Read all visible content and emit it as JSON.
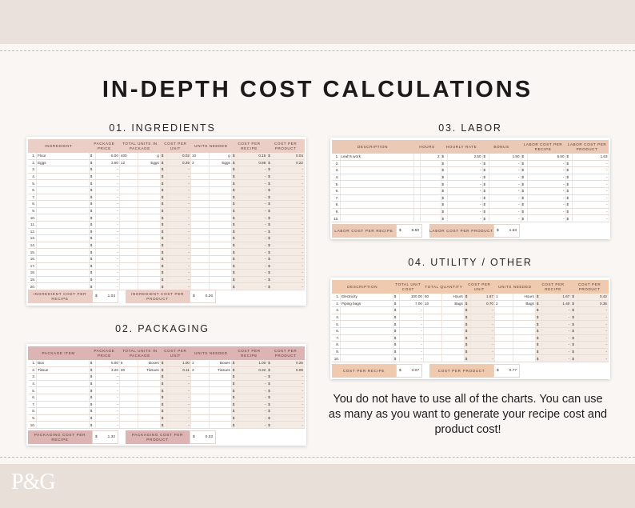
{
  "title": "IN-DEPTH COST CALCULATIONS",
  "logo": "P&G",
  "colors": {
    "ingredients_header": "#ebcfc6",
    "labor_header": "#ebc9b7",
    "utility_header": "#efcaae",
    "packaging_header": "#dbb4b3"
  },
  "ingredients": {
    "section_title": "01. INGREDIENTS",
    "columns": [
      "INGREDIENT",
      "PACKAGE PRICE",
      "TOTAL UNITS IN PACKAGE",
      "COST PER UNIT",
      "UNITS NEEDED",
      "COST PER RECIPE",
      "COST PER PRODUCT"
    ],
    "rows": [
      {
        "n": "1.",
        "name": "Flour",
        "price": "6.00",
        "units": "400",
        "unit": "g",
        "cpu": "0.02",
        "needed": "10",
        "nunit": "g",
        "cpr": "0.15",
        "cpp": "0.04"
      },
      {
        "n": "2.",
        "name": "Eggs",
        "price": "3.50",
        "units": "12",
        "unit": "Eggs",
        "cpu": "0.29",
        "needed": "3",
        "nunit": "Eggs",
        "cpr": "0.88",
        "cpp": "0.22"
      },
      {
        "n": "3."
      },
      {
        "n": "4."
      },
      {
        "n": "5."
      },
      {
        "n": "6."
      },
      {
        "n": "7."
      },
      {
        "n": "8."
      },
      {
        "n": "9."
      },
      {
        "n": "10."
      },
      {
        "n": "11."
      },
      {
        "n": "12."
      },
      {
        "n": "13."
      },
      {
        "n": "14."
      },
      {
        "n": "15."
      },
      {
        "n": "16."
      },
      {
        "n": "17."
      },
      {
        "n": "18."
      },
      {
        "n": "19."
      },
      {
        "n": "20."
      }
    ],
    "summary": [
      {
        "label": "INGREDIENT COST PER RECIPE",
        "currency": "$",
        "value": "1.03"
      },
      {
        "label": "INGREDIENT COST PER PRODUCT",
        "currency": "$",
        "value": "0.26"
      }
    ]
  },
  "labor": {
    "section_title": "03. LABOR",
    "columns": [
      "DESCRIPTION",
      "HOURS",
      "HOURLY RATE",
      "BONUS",
      "LABOR COST PER RECIPE",
      "LABOR COST PER PRODUCT"
    ],
    "rows": [
      {
        "n": "1.",
        "name": "Leah's work",
        "hours": "2",
        "rate": "2.50",
        "bonus": "1.50",
        "cpr": "6.50",
        "cpp": "1.63"
      },
      {
        "n": "2."
      },
      {
        "n": "3."
      },
      {
        "n": "4."
      },
      {
        "n": "5."
      },
      {
        "n": "6."
      },
      {
        "n": "7."
      },
      {
        "n": "8."
      },
      {
        "n": "9."
      },
      {
        "n": "10."
      }
    ],
    "summary": [
      {
        "label": "LABOR COST PER RECIPE",
        "currency": "$",
        "value": "6.50"
      },
      {
        "label": "LABOR COST PER PRODUCT",
        "currency": "$",
        "value": "1.63"
      }
    ]
  },
  "utility": {
    "section_title": "04. UTILITY / OTHER",
    "columns": [
      "DESCRIPTION",
      "TOTAL UNIT COST",
      "TOTAL QUANTITY",
      "COST PER UNIT",
      "UNITS NEEDED",
      "COST PER RECIPE",
      "COST PER PRODUCT"
    ],
    "rows": [
      {
        "n": "1.",
        "name": "Electricity",
        "price": "100.00",
        "units": "60",
        "unit": "Hours",
        "cpu": "1.67",
        "needed": "1",
        "nunit": "Hours",
        "cpr": "1.67",
        "cpp": "0.42"
      },
      {
        "n": "2.",
        "name": "Piping bags",
        "price": "7.00",
        "units": "10",
        "unit": "Bags",
        "cpu": "0.70",
        "needed": "2",
        "nunit": "Bags",
        "cpr": "1.40",
        "cpp": "0.35"
      },
      {
        "n": "3."
      },
      {
        "n": "4."
      },
      {
        "n": "5."
      },
      {
        "n": "6."
      },
      {
        "n": "7."
      },
      {
        "n": "8."
      },
      {
        "n": "9."
      },
      {
        "n": "10."
      }
    ],
    "summary": [
      {
        "label": "COST PER RECIPE",
        "currency": "$",
        "value": "3.07"
      },
      {
        "label": "COST PER PRODUCT",
        "currency": "$",
        "value": "0.77"
      }
    ]
  },
  "packaging": {
    "section_title": "02. PACKAGING",
    "columns": [
      "PACKAGE ITEM",
      "PACKAGE PRICE",
      "TOTAL UNITS IN PACKAGE",
      "COST PER UNIT",
      "UNITS NEEDED",
      "COST PER RECIPE",
      "COST PER PRODUCT"
    ],
    "rows": [
      {
        "n": "1.",
        "name": "Box",
        "price": "5.00",
        "units": "5",
        "unit": "Boxes",
        "cpu": "1.00",
        "needed": "1",
        "nunit": "Boxes",
        "cpr": "1.00",
        "cpp": "0.25"
      },
      {
        "n": "2.",
        "name": "Tissue",
        "price": "3.20",
        "units": "30",
        "unit": "Tissues",
        "cpu": "0.11",
        "needed": "3",
        "nunit": "Tissues",
        "cpr": "0.32",
        "cpp": "0.08"
      },
      {
        "n": "3."
      },
      {
        "n": "4."
      },
      {
        "n": "5."
      },
      {
        "n": "6."
      },
      {
        "n": "7."
      },
      {
        "n": "8."
      },
      {
        "n": "9."
      },
      {
        "n": "10."
      }
    ],
    "summary": [
      {
        "label": "PACKAGING COST PER RECIPE",
        "currency": "$",
        "value": "1.32"
      },
      {
        "label": "PACKAGING COST PER PRODUCT",
        "currency": "$",
        "value": "0.33"
      }
    ]
  },
  "empty_value": "-",
  "currency_symbol": "$",
  "note": "You do not have to use all of the charts. You can use as many as you want to generate your recipe cost and product cost!"
}
